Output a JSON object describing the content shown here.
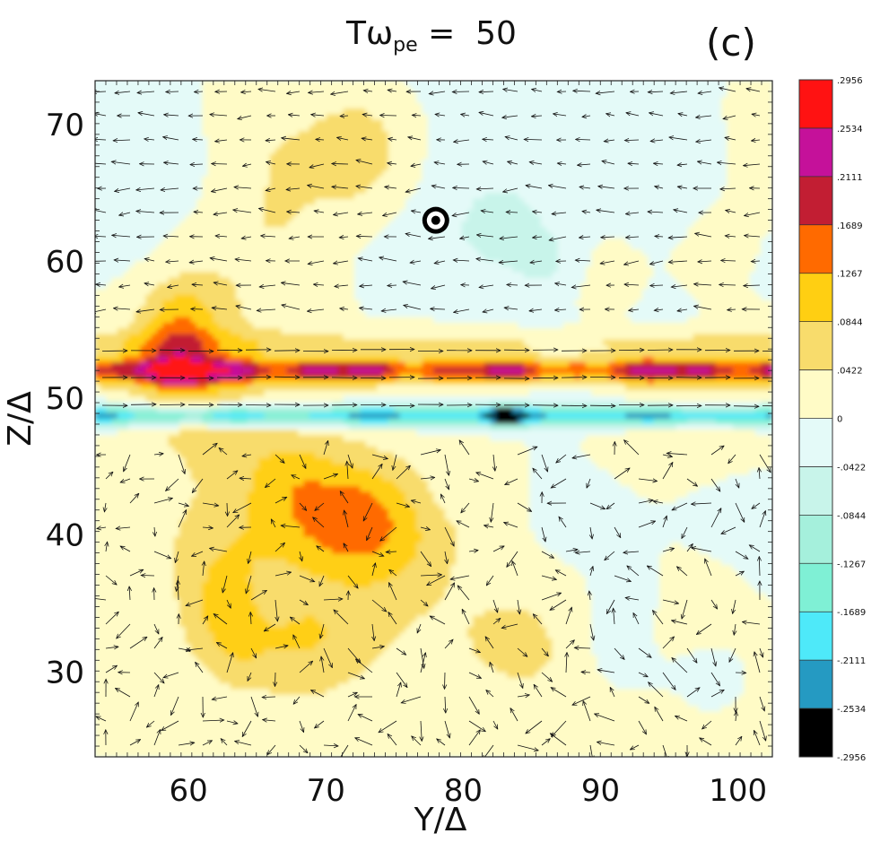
{
  "chart_data": {
    "type": "heatmap",
    "title": {
      "prefix": "Tω",
      "subscript": "pe",
      "equals": " =  ",
      "value": "50"
    },
    "panel_label": "(c)",
    "xlabel": "Y/Δ",
    "ylabel": "Z/Δ",
    "xlim": [
      53.2,
      102.5
    ],
    "ylim": [
      23.8,
      73.2
    ],
    "xticks": [
      60,
      70,
      80,
      90,
      100
    ],
    "yticks": [
      30,
      40,
      50,
      60,
      70
    ],
    "xtick_labels": [
      "60",
      "70",
      "80",
      "90",
      "100"
    ],
    "ytick_labels": [
      "30",
      "40",
      "50",
      "60",
      "70"
    ],
    "colorbar": {
      "levels": [
        {
          "label": ".2956",
          "color": "#ff1212"
        },
        {
          "label": ".2534",
          "color": "#c5119a"
        },
        {
          "label": ".2111",
          "color": "#c21e33"
        },
        {
          "label": ".1689",
          "color": "#ff6a00"
        },
        {
          "label": ".1267",
          "color": "#ffcf12"
        },
        {
          "label": ".0844",
          "color": "#f8dc6c"
        },
        {
          "label": ".0422",
          "color": "#fffbc6"
        },
        {
          "label": "0",
          "color": "#e4faf8"
        },
        {
          "label": "-.0422",
          "color": "#c8f4ea"
        },
        {
          "label": "-.0844",
          "color": "#a5f0dc"
        },
        {
          "label": "-.1267",
          "color": "#7ff0d5"
        },
        {
          "label": "-.1689",
          "color": "#4ee9f9"
        },
        {
          "label": "-.2111",
          "color": "#259ac2"
        },
        {
          "label": "-.2534",
          "color": "#000000"
        },
        {
          "label": "-.2956",
          "color": ""
        }
      ]
    },
    "marker": {
      "type": "out-of-plane symbol",
      "y": 78,
      "z": 63
    },
    "features": [
      {
        "description": "positive current sheet",
        "z_range": [
          50.5,
          53.5
        ],
        "peak": 0.21
      },
      {
        "description": "negative current sheet",
        "z_range": [
          47.8,
          49.8
        ],
        "peak": -0.29
      },
      {
        "description": "field-line arrows pointing +Y along the sheet",
        "z_values": [
          49.5,
          51.5,
          53.5
        ]
      }
    ]
  }
}
